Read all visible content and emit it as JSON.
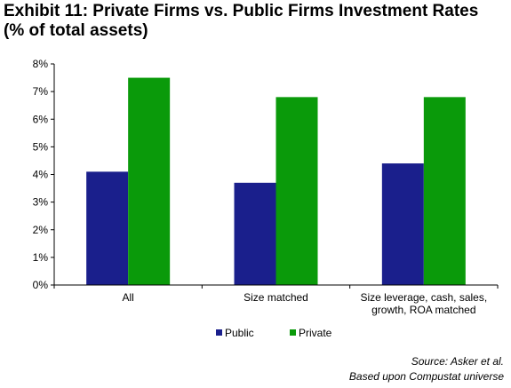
{
  "title_line1": "Exhibit 11: Private Firms vs. Public Firms Investment Rates",
  "title_line2": "(% of total assets)",
  "source_line1": "Source: Asker et al.",
  "source_line2": "Based upon Compustat universe",
  "chart_data": {
    "type": "bar",
    "categories": [
      [
        "All"
      ],
      [
        "Size matched"
      ],
      [
        "Size leverage, cash, sales,",
        "growth, ROA matched"
      ]
    ],
    "series": [
      {
        "name": "Public",
        "color": "#1a1f8c",
        "values": [
          4.1,
          3.7,
          4.4
        ]
      },
      {
        "name": "Private",
        "color": "#0a9a0a",
        "values": [
          7.5,
          6.8,
          6.8
        ]
      }
    ],
    "ylim": [
      0,
      8
    ],
    "yticks": [
      0,
      1,
      2,
      3,
      4,
      5,
      6,
      7,
      8
    ],
    "ytick_labels": [
      "0%",
      "1%",
      "2%",
      "3%",
      "4%",
      "5%",
      "6%",
      "7%",
      "8%"
    ],
    "grid": false,
    "legend_position": "bottom-center"
  }
}
